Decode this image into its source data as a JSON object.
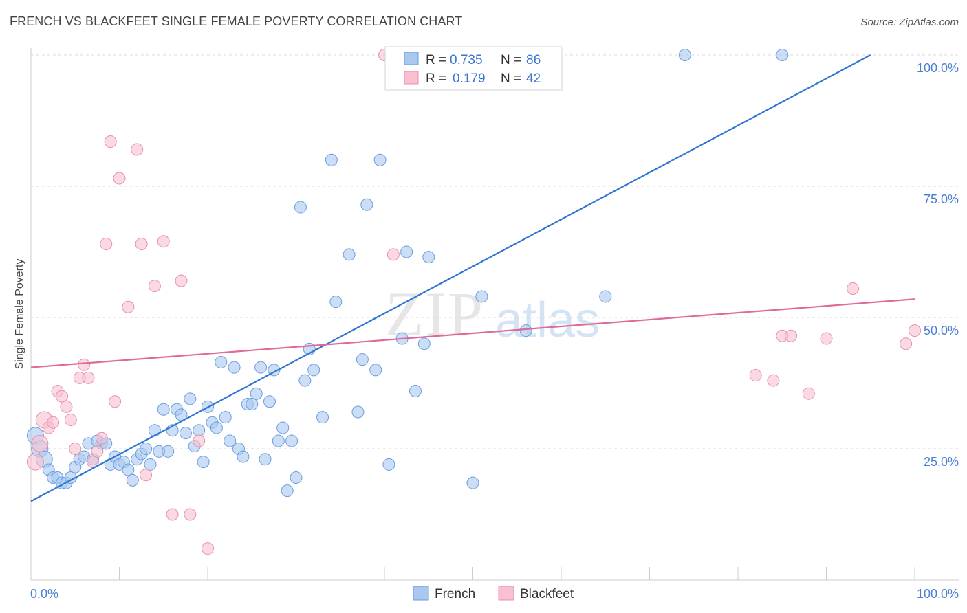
{
  "title": "FRENCH VS BLACKFEET SINGLE FEMALE POVERTY CORRELATION CHART",
  "source": "Source: ZipAtlas.com",
  "watermark": {
    "zip": "ZIP",
    "atlas": "atlas"
  },
  "colors": {
    "french_fill": "#a8c8f0",
    "french_stroke": "#6a9ee0",
    "french_line": "#2f76d2",
    "blackfeet_fill": "#f8c0d0",
    "blackfeet_stroke": "#e890ac",
    "blackfeet_line": "#e0699a",
    "tick_label": "#4a7fd4",
    "grid": "#d8d8d8"
  },
  "legend": {
    "rows": [
      {
        "r_label": "R =",
        "r_value": "0.735",
        "n_label": "N =",
        "n_value": "86"
      },
      {
        "r_label": "R =",
        "r_value": "0.179",
        "n_label": "N =",
        "n_value": "42"
      }
    ]
  },
  "chart_data": {
    "type": "scatter",
    "xlabel": "",
    "ylabel": "Single Female Poverty",
    "xlim": [
      0,
      100
    ],
    "ylim": [
      0,
      100
    ],
    "x_tick_labels": [
      "0.0%",
      "100.0%"
    ],
    "y_tick_labels": [
      "25.0%",
      "50.0%",
      "75.0%",
      "100.0%"
    ],
    "y_ticks": [
      25,
      50,
      75,
      100
    ],
    "grid": true,
    "legend_position": "top-center",
    "bottom_legend": [
      "French",
      "Blackfeet"
    ],
    "series": [
      {
        "name": "French",
        "trend": {
          "x0": 0,
          "y0": 15,
          "x1": 95,
          "y1": 100
        },
        "points": [
          [
            0.5,
            27.5
          ],
          [
            1,
            25
          ],
          [
            1.5,
            23
          ],
          [
            2,
            21
          ],
          [
            2.5,
            19.5
          ],
          [
            3,
            19.5
          ],
          [
            3.5,
            18.5
          ],
          [
            4,
            18.5
          ],
          [
            4.5,
            19.5
          ],
          [
            5,
            21.5
          ],
          [
            5.5,
            23
          ],
          [
            6,
            23.5
          ],
          [
            6.5,
            26
          ],
          [
            7,
            23
          ],
          [
            7.5,
            26.5
          ],
          [
            8,
            26
          ],
          [
            8.5,
            26
          ],
          [
            9,
            22
          ],
          [
            9.5,
            23.5
          ],
          [
            10,
            22
          ],
          [
            10.5,
            22.5
          ],
          [
            11,
            21
          ],
          [
            11.5,
            19
          ],
          [
            12,
            23
          ],
          [
            12.5,
            24
          ],
          [
            13,
            25
          ],
          [
            13.5,
            22
          ],
          [
            14,
            28.5
          ],
          [
            14.5,
            24.5
          ],
          [
            15,
            32.5
          ],
          [
            15.5,
            24.5
          ],
          [
            16,
            28.5
          ],
          [
            16.5,
            32.5
          ],
          [
            17,
            31.5
          ],
          [
            17.5,
            28
          ],
          [
            18,
            34.5
          ],
          [
            18.5,
            25.5
          ],
          [
            19,
            28.5
          ],
          [
            19.5,
            22.5
          ],
          [
            20,
            33
          ],
          [
            20.5,
            30
          ],
          [
            21,
            29
          ],
          [
            21.5,
            41.5
          ],
          [
            22,
            31
          ],
          [
            22.5,
            26.5
          ],
          [
            23,
            40.5
          ],
          [
            23.5,
            25
          ],
          [
            24,
            23.5
          ],
          [
            24.5,
            33.5
          ],
          [
            25,
            33.5
          ],
          [
            25.5,
            35.5
          ],
          [
            26,
            40.5
          ],
          [
            26.5,
            23
          ],
          [
            27,
            34
          ],
          [
            27.5,
            40
          ],
          [
            28,
            26.5
          ],
          [
            28.5,
            29
          ],
          [
            29,
            17
          ],
          [
            29.5,
            26.5
          ],
          [
            30,
            19.5
          ],
          [
            30.5,
            71
          ],
          [
            31,
            38
          ],
          [
            31.5,
            44
          ],
          [
            32,
            40
          ],
          [
            33,
            31
          ],
          [
            34,
            80
          ],
          [
            34.5,
            53
          ],
          [
            36,
            62
          ],
          [
            37,
            32
          ],
          [
            37.5,
            42
          ],
          [
            38,
            71.5
          ],
          [
            39,
            40
          ],
          [
            39.5,
            80
          ],
          [
            40.5,
            22
          ],
          [
            42,
            46
          ],
          [
            42.5,
            62.5
          ],
          [
            43.5,
            36
          ],
          [
            44.5,
            45
          ],
          [
            45,
            61.5
          ],
          [
            47.5,
            100
          ],
          [
            50,
            18.5
          ],
          [
            51,
            54
          ],
          [
            56,
            47.5
          ],
          [
            74,
            100
          ],
          [
            85,
            100
          ],
          [
            65,
            54
          ]
        ]
      },
      {
        "name": "Blackfeet",
        "trend": {
          "x0": 0,
          "y0": 40.5,
          "x1": 100,
          "y1": 53.5
        },
        "points": [
          [
            0.5,
            22.5
          ],
          [
            1,
            26
          ],
          [
            1.5,
            30.5
          ],
          [
            2,
            29
          ],
          [
            2.5,
            30
          ],
          [
            3,
            36
          ],
          [
            3.5,
            35
          ],
          [
            4,
            33
          ],
          [
            4.5,
            30.5
          ],
          [
            5,
            25
          ],
          [
            5.5,
            38.5
          ],
          [
            6,
            41
          ],
          [
            6.5,
            38.5
          ],
          [
            7,
            22.5
          ],
          [
            7.5,
            24.5
          ],
          [
            8,
            27
          ],
          [
            8.5,
            64
          ],
          [
            9,
            83.5
          ],
          [
            9.5,
            34
          ],
          [
            10,
            76.5
          ],
          [
            11,
            52
          ],
          [
            12,
            82
          ],
          [
            12.5,
            64
          ],
          [
            13,
            20
          ],
          [
            14,
            56
          ],
          [
            15,
            64.5
          ],
          [
            16,
            12.5
          ],
          [
            17,
            57
          ],
          [
            18,
            12.5
          ],
          [
            19,
            26.5
          ],
          [
            20,
            6
          ],
          [
            40,
            100
          ],
          [
            41,
            62
          ],
          [
            82,
            39
          ],
          [
            84,
            38
          ],
          [
            85,
            46.5
          ],
          [
            86,
            46.5
          ],
          [
            88,
            35.5
          ],
          [
            90,
            46
          ],
          [
            93,
            55.5
          ],
          [
            100,
            47.5
          ],
          [
            99,
            45
          ]
        ]
      }
    ]
  }
}
